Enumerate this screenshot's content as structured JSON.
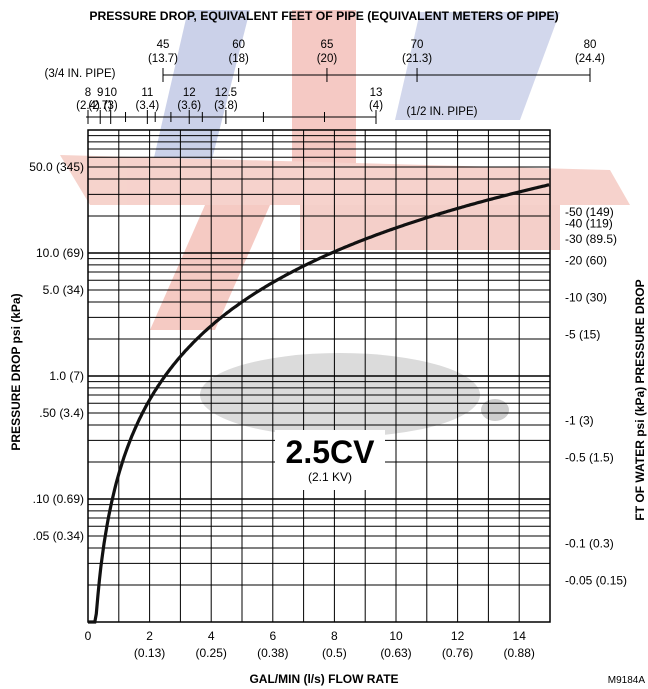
{
  "figure_id": "M9184A",
  "colors": {
    "line": "#000000",
    "grid": "#000000",
    "curve": "#111111"
  },
  "chart_data": {
    "type": "line",
    "title": "PRESSURE DROP, EQUIVALENT FEET OF PIPE (EQUIVALENT METERS OF PIPE)",
    "xlabel": "GAL/MIN (l/s) FLOW RATE",
    "ylabel": "PRESSURE DROP psi (kPa)",
    "y2label": "FT OF WATER psi (kPa) PRESSURE DROP",
    "xlim": [
      0,
      15
    ],
    "y_scale": "log",
    "ylim": [
      0.01,
      100
    ],
    "cv_label": "2.5CV",
    "kv_label": "(2.1 KV)",
    "x_ticks": [
      {
        "v": 0,
        "top": "0",
        "bottom": ""
      },
      {
        "v": 2,
        "top": "2",
        "bottom": "(0.13)"
      },
      {
        "v": 4,
        "top": "4",
        "bottom": "(0.25)"
      },
      {
        "v": 6,
        "top": "6",
        "bottom": "(0.38)"
      },
      {
        "v": 8,
        "top": "8",
        "bottom": "(0.5)"
      },
      {
        "v": 10,
        "top": "10",
        "bottom": "(0.63)"
      },
      {
        "v": 12,
        "top": "12",
        "bottom": "(0.76)"
      },
      {
        "v": 14,
        "top": "14",
        "bottom": "(0.88)"
      }
    ],
    "y_ticks_left": [
      {
        "v": 50,
        "label": "50.0 (345)"
      },
      {
        "v": 10,
        "label": "10.0 (69)"
      },
      {
        "v": 5,
        "label": "5.0 (34)"
      },
      {
        "v": 1,
        "label": "1.0 (7)"
      },
      {
        "v": 0.5,
        "label": ".50 (3.4)"
      },
      {
        "v": 0.1,
        "label": ".10 (0.69)"
      },
      {
        "v": 0.05,
        "label": ".05 (0.34)"
      }
    ],
    "y_ticks_right": [
      {
        "v": 21.6,
        "label": "-50 (149)"
      },
      {
        "v": 17.3,
        "label": "-40 (119)"
      },
      {
        "v": 13.0,
        "label": "-30 (89.5)"
      },
      {
        "v": 8.66,
        "label": "-20 (60)"
      },
      {
        "v": 4.33,
        "label": "-10 (30)"
      },
      {
        "v": 2.17,
        "label": "-5 (15)"
      },
      {
        "v": 0.433,
        "label": "-1 (3)"
      },
      {
        "v": 0.217,
        "label": "-0.5 (1.5)"
      },
      {
        "v": 0.0433,
        "label": "-0.1 (0.3)"
      },
      {
        "v": 0.0217,
        "label": "-0.05 (0.15)"
      }
    ],
    "pipe_3_4": {
      "label": "(3/4 IN. PIPE)",
      "ticks": [
        {
          "x": 5.1,
          "top": "45",
          "bottom": "(13.7)"
        },
        {
          "x": 9.3,
          "top": "60",
          "bottom": "(18)"
        },
        {
          "x": 14.2,
          "top": "65",
          "bottom": "(20)"
        },
        {
          "x": 19.2,
          "top": "70",
          "bottom": "(21.3)"
        },
        {
          "x": 28.8,
          "top": "80",
          "bottom": "(24.4)"
        }
      ]
    },
    "pipe_1_2": {
      "label": "(1/2 IN. PIPE)",
      "ticks": [
        {
          "x": 0.45,
          "top": "8",
          "bottom": "(2.4)"
        },
        {
          "x": 1.15,
          "top": "9",
          "bottom": "(2.7)"
        },
        {
          "x": 1.75,
          "top": "10",
          "bottom": "(3)"
        },
        {
          "x": 3.85,
          "top": "11",
          "bottom": "(3.4)"
        },
        {
          "x": 6.25,
          "top": "12",
          "bottom": "(3.6)"
        },
        {
          "x": 8.35,
          "top": "12.5",
          "bottom": "(3.8)"
        },
        {
          "x": 16.95,
          "top": "13",
          "bottom": "(4)"
        }
      ]
    },
    "series": [
      {
        "x": [
          0,
          0.1,
          0.2,
          0.3,
          0.5,
          0.75,
          1,
          1.5,
          2,
          2.5,
          3,
          4,
          5,
          6,
          7,
          8,
          9,
          10,
          11,
          12,
          13,
          14,
          15
        ],
        "y": [
          0.0135,
          0.0016,
          0.0064,
          0.0144,
          0.04,
          0.09,
          0.16,
          0.36,
          0.64,
          1.0,
          1.44,
          2.56,
          4.0,
          5.76,
          7.84,
          10.24,
          12.96,
          16.0,
          19.36,
          23.04,
          27.04,
          31.36,
          36.0
        ]
      }
    ]
  }
}
